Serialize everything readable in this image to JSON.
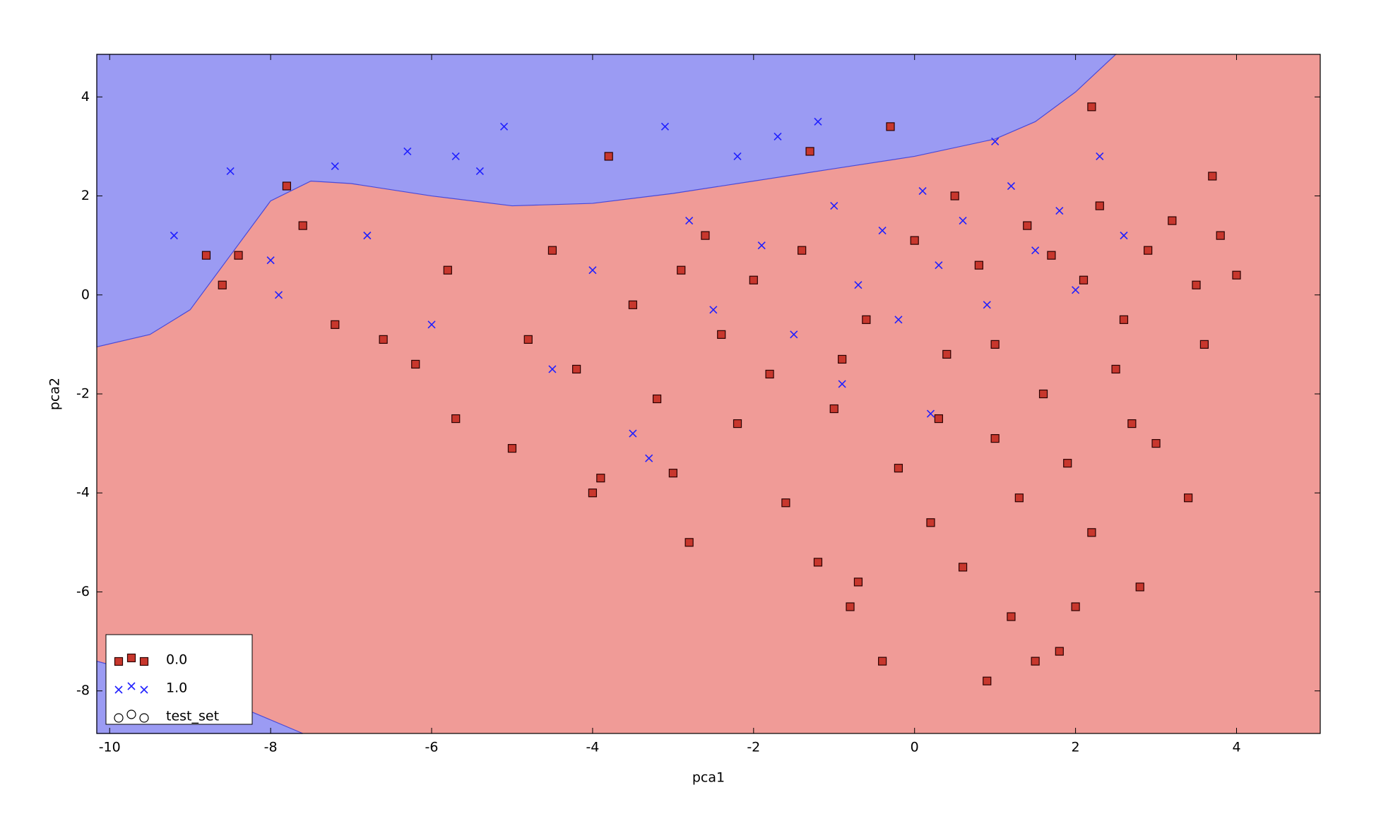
{
  "chart_data": {
    "type": "scatter",
    "xlabel": "pca1",
    "ylabel": "pca2",
    "xlim": [
      -10.16,
      5.04
    ],
    "ylim": [
      -8.86,
      4.86
    ],
    "xticks": [
      -10,
      -8,
      -6,
      -4,
      -2,
      0,
      2,
      4
    ],
    "yticks": [
      -8,
      -6,
      -4,
      -2,
      0,
      2,
      4
    ],
    "legend": "lower left",
    "regions": [
      {
        "color": "#9b9bf3",
        "x": [
          -10.16,
          -10.16,
          -9.5,
          -9,
          -8.5,
          -8,
          -7.5,
          -7,
          -6,
          -5,
          -4,
          -3,
          -2,
          -1,
          0,
          1,
          1.5,
          2,
          2.5
        ],
        "y": [
          4.86,
          -1.05,
          -0.8,
          -0.3,
          0.8,
          1.9,
          2.3,
          2.25,
          2.0,
          1.8,
          1.85,
          2.05,
          2.3,
          2.55,
          2.8,
          3.15,
          3.5,
          4.1,
          4.86
        ]
      },
      {
        "color": "#9b9bf3",
        "x": [
          -10.16,
          -10.16,
          -9,
          -7.6
        ],
        "y": [
          -8.86,
          -7.4,
          -7.9,
          -8.86
        ]
      }
    ],
    "series": [
      {
        "name": "0.0",
        "color": "#c8372d",
        "marker": "square",
        "x": [
          -8.8,
          -8.6,
          -8.4,
          -7.8,
          -7.6,
          -7.2,
          -6.6,
          -6.2,
          -5.8,
          -5.7,
          -5.0,
          -4.8,
          -4.5,
          -4.2,
          -4.0,
          -3.9,
          -3.8,
          -3.5,
          -3.2,
          -3.0,
          -2.8,
          -2.6,
          -2.4,
          -2.2,
          -2.0,
          -1.8,
          -1.6,
          -1.4,
          -1.2,
          -1.0,
          -0.8,
          -0.7,
          -0.6,
          -0.4,
          -0.3,
          -0.2,
          0.0,
          0.2,
          0.4,
          0.6,
          0.8,
          0.9,
          1.0,
          1.2,
          1.3,
          1.4,
          1.5,
          1.6,
          1.8,
          1.9,
          2.0,
          2.1,
          2.2,
          2.3,
          2.5,
          2.7,
          2.8,
          2.9,
          3.0,
          3.2,
          3.4,
          3.5,
          3.6,
          3.7,
          3.8,
          4.0,
          2.2,
          -1.3,
          0.5,
          -2.9,
          1.0,
          2.6,
          0.3,
          -0.9,
          1.7
        ],
        "y": [
          0.8,
          0.2,
          0.8,
          2.2,
          1.4,
          -0.6,
          -0.9,
          -1.4,
          0.5,
          -2.5,
          -3.1,
          -0.9,
          0.9,
          -1.5,
          -4.0,
          -3.7,
          2.8,
          -0.2,
          -2.1,
          -3.6,
          -5.0,
          1.2,
          -0.8,
          -2.6,
          0.3,
          -1.6,
          -4.2,
          0.9,
          -5.4,
          -2.3,
          -6.3,
          -5.8,
          -0.5,
          -7.4,
          3.4,
          -3.5,
          1.1,
          -4.6,
          -1.2,
          -5.5,
          0.6,
          -7.8,
          -2.9,
          -6.5,
          -4.1,
          1.4,
          -7.4,
          -2.0,
          -7.2,
          -3.4,
          -6.3,
          0.3,
          -4.8,
          1.8,
          -1.5,
          -2.6,
          -5.9,
          0.9,
          -3.0,
          1.5,
          -4.1,
          0.2,
          -1.0,
          2.4,
          1.2,
          0.4,
          3.8,
          2.9,
          2.0,
          0.5,
          -1.0,
          -0.5,
          -2.5,
          -1.3,
          0.8
        ]
      },
      {
        "name": "1.0",
        "color": "#2020ff",
        "marker": "x",
        "x": [
          -9.2,
          -8.5,
          -8.0,
          -7.9,
          -7.2,
          -6.8,
          -6.3,
          -6.0,
          -5.7,
          -5.4,
          -5.1,
          -4.5,
          -4.0,
          -3.5,
          -3.3,
          -3.1,
          -2.8,
          -2.5,
          -2.2,
          -1.9,
          -1.7,
          -1.5,
          -1.2,
          -1.0,
          -0.7,
          -0.4,
          -0.2,
          0.1,
          0.3,
          0.6,
          0.9,
          1.0,
          1.2,
          1.5,
          1.8,
          2.0,
          2.3,
          2.6,
          0.2,
          -0.9
        ],
        "y": [
          1.2,
          2.5,
          0.7,
          0.0,
          2.6,
          1.2,
          2.9,
          -0.6,
          2.8,
          2.5,
          3.4,
          -1.5,
          0.5,
          -2.8,
          -3.3,
          3.4,
          1.5,
          -0.3,
          2.8,
          1.0,
          3.2,
          -0.8,
          3.5,
          1.8,
          0.2,
          1.3,
          -0.5,
          2.1,
          0.6,
          1.5,
          -0.2,
          3.1,
          2.2,
          0.9,
          1.7,
          0.1,
          2.8,
          1.2,
          -2.4,
          -1.8
        ]
      },
      {
        "name": "test_set",
        "color": "#000000",
        "marker": "circle",
        "x": [],
        "y": []
      }
    ]
  }
}
